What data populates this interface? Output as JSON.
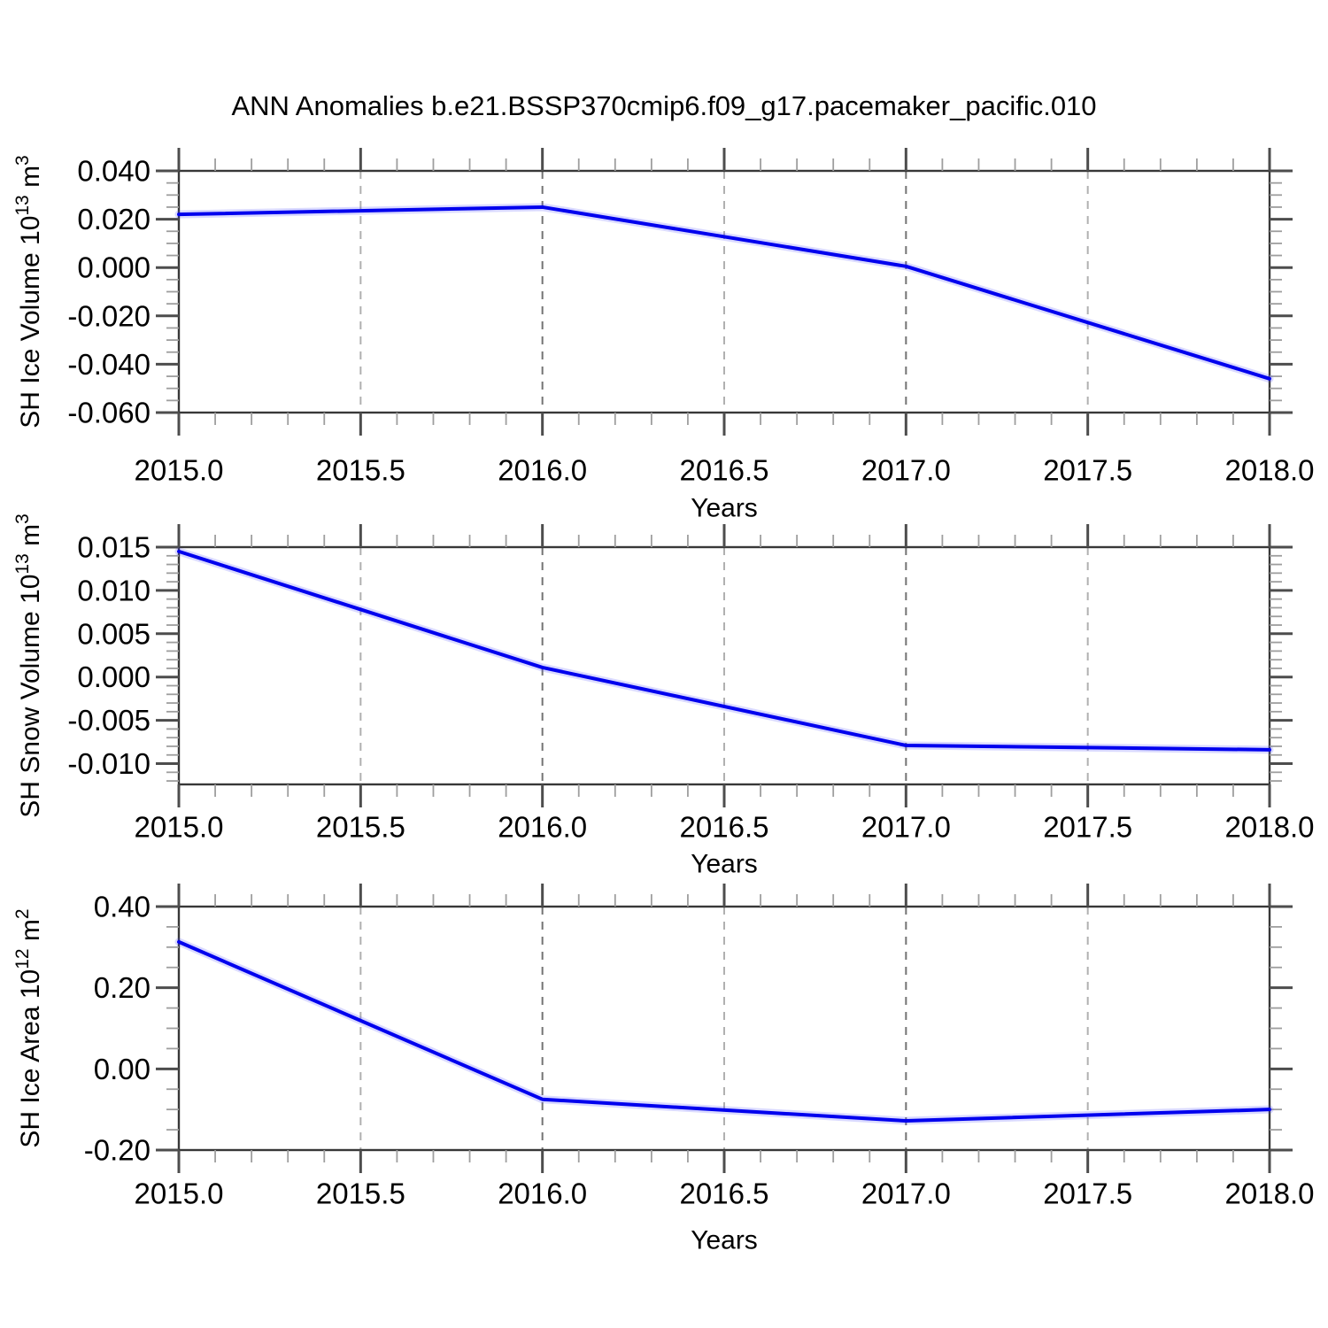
{
  "page": {
    "title": "ANN Anomalies b.e21.BSSP370cmip6.f09_g17.pacemaker_pacific.010",
    "background": "#ffffff"
  },
  "chart_data": [
    {
      "id": "sh-ice-volume",
      "type": "line",
      "title": "",
      "xlabel": "Years",
      "ylabel": "SH Ice Volume 10¹³ m³",
      "ylabel_parts": [
        {
          "text": "SH Ice Volume 10"
        },
        {
          "text": "13",
          "sup": true
        },
        {
          "text": " m"
        },
        {
          "text": "3",
          "sup": true
        }
      ],
      "x": [
        2015.0,
        2016.0,
        2017.0,
        2018.0
      ],
      "values": [
        0.022,
        0.025,
        0.0005,
        -0.046
      ],
      "xlim": [
        2015.0,
        2018.0
      ],
      "ylim": [
        -0.06,
        0.04
      ],
      "xticks": [
        2015.0,
        2015.5,
        2016.0,
        2016.5,
        2017.0,
        2017.5,
        2018.0
      ],
      "xtick_labels": [
        "2015.0",
        "2015.5",
        "2016.0",
        "2016.5",
        "2017.0",
        "2017.5",
        "2018.0"
      ],
      "x_minor_step": 0.1,
      "yticks": [
        0.04,
        0.02,
        0.0,
        -0.02,
        -0.04,
        -0.06
      ],
      "ytick_labels": [
        "0.040",
        "0.020",
        "0.000",
        "-0.020",
        "-0.040",
        "-0.060"
      ],
      "y_minor_step": 0.005,
      "grid_x": [
        2015.5,
        2016.0,
        2016.5,
        2017.0,
        2017.5
      ],
      "grid_style": "dashed",
      "line_color": "#0000ee"
    },
    {
      "id": "sh-snow-volume",
      "type": "line",
      "title": "",
      "xlabel": "Years",
      "ylabel": "SH Snow Volume 10¹³ m³",
      "ylabel_parts": [
        {
          "text": "SH Snow Volume 10"
        },
        {
          "text": "13",
          "sup": true
        },
        {
          "text": " m"
        },
        {
          "text": "3",
          "sup": true
        }
      ],
      "x": [
        2015.0,
        2016.0,
        2017.0,
        2018.0
      ],
      "values": [
        0.0145,
        0.0011,
        -0.0079,
        -0.0084
      ],
      "xlim": [
        2015.0,
        2018.0
      ],
      "ylim": [
        -0.0124,
        0.015
      ],
      "xticks": [
        2015.0,
        2015.5,
        2016.0,
        2016.5,
        2017.0,
        2017.5,
        2018.0
      ],
      "xtick_labels": [
        "2015.0",
        "2015.5",
        "2016.0",
        "2016.5",
        "2017.0",
        "2017.5",
        "2018.0"
      ],
      "x_minor_step": 0.1,
      "yticks": [
        0.015,
        0.01,
        0.005,
        0.0,
        -0.005,
        -0.01
      ],
      "ytick_labels": [
        "0.015",
        "0.010",
        "0.005",
        "0.000",
        "-0.005",
        "-0.010"
      ],
      "y_minor_step": 0.001,
      "grid_x": [
        2015.5,
        2016.0,
        2016.5,
        2017.0,
        2017.5
      ],
      "grid_style": "dashed",
      "line_color": "#0000ee"
    },
    {
      "id": "sh-ice-area",
      "type": "line",
      "title": "",
      "xlabel": "Years",
      "ylabel": "SH Ice Area 10¹² m²",
      "ylabel_parts": [
        {
          "text": "SH Ice Area 10"
        },
        {
          "text": "12",
          "sup": true
        },
        {
          "text": " m"
        },
        {
          "text": "2",
          "sup": true
        }
      ],
      "x": [
        2015.0,
        2016.0,
        2017.0,
        2018.0
      ],
      "values": [
        0.313,
        -0.075,
        -0.128,
        -0.1
      ],
      "xlim": [
        2015.0,
        2018.0
      ],
      "ylim": [
        -0.2,
        0.4
      ],
      "xticks": [
        2015.0,
        2015.5,
        2016.0,
        2016.5,
        2017.0,
        2017.5,
        2018.0
      ],
      "xtick_labels": [
        "2015.0",
        "2015.5",
        "2016.0",
        "2016.5",
        "2017.0",
        "2017.5",
        "2018.0"
      ],
      "x_minor_step": 0.1,
      "yticks": [
        0.4,
        0.2,
        0.0,
        -0.2
      ],
      "ytick_labels": [
        "0.40",
        "0.20",
        "0.00",
        "-0.20"
      ],
      "y_minor_step": 0.05,
      "grid_x": [
        2015.5,
        2016.0,
        2016.5,
        2017.0,
        2017.5
      ],
      "grid_style": "dashed",
      "line_color": "#0000ee"
    }
  ]
}
